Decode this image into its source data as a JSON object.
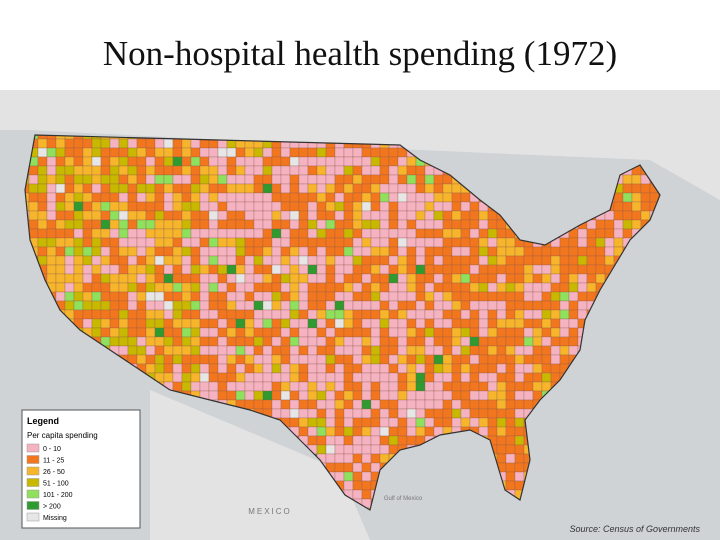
{
  "title": "Non-hospital health spending (1972)",
  "legend": {
    "title": "Legend",
    "subtitle": "Per capita spending",
    "items": [
      {
        "label": "0 - 10",
        "color": "#f5b3c1"
      },
      {
        "label": "11 - 25",
        "color": "#f2761e"
      },
      {
        "label": "26 - 50",
        "color": "#f7b52c"
      },
      {
        "label": "51 - 100",
        "color": "#c9b800"
      },
      {
        "label": "101 - 200",
        "color": "#8fe05c"
      },
      {
        "label": "> 200",
        "color": "#2f9a2f"
      },
      {
        "label": "Missing",
        "color": "#e6e6e6"
      }
    ]
  },
  "map_labels": {
    "mexico": "MEXICO",
    "gulf": "Gulf of Mexico",
    "source": "Source: Census of Governments"
  }
}
